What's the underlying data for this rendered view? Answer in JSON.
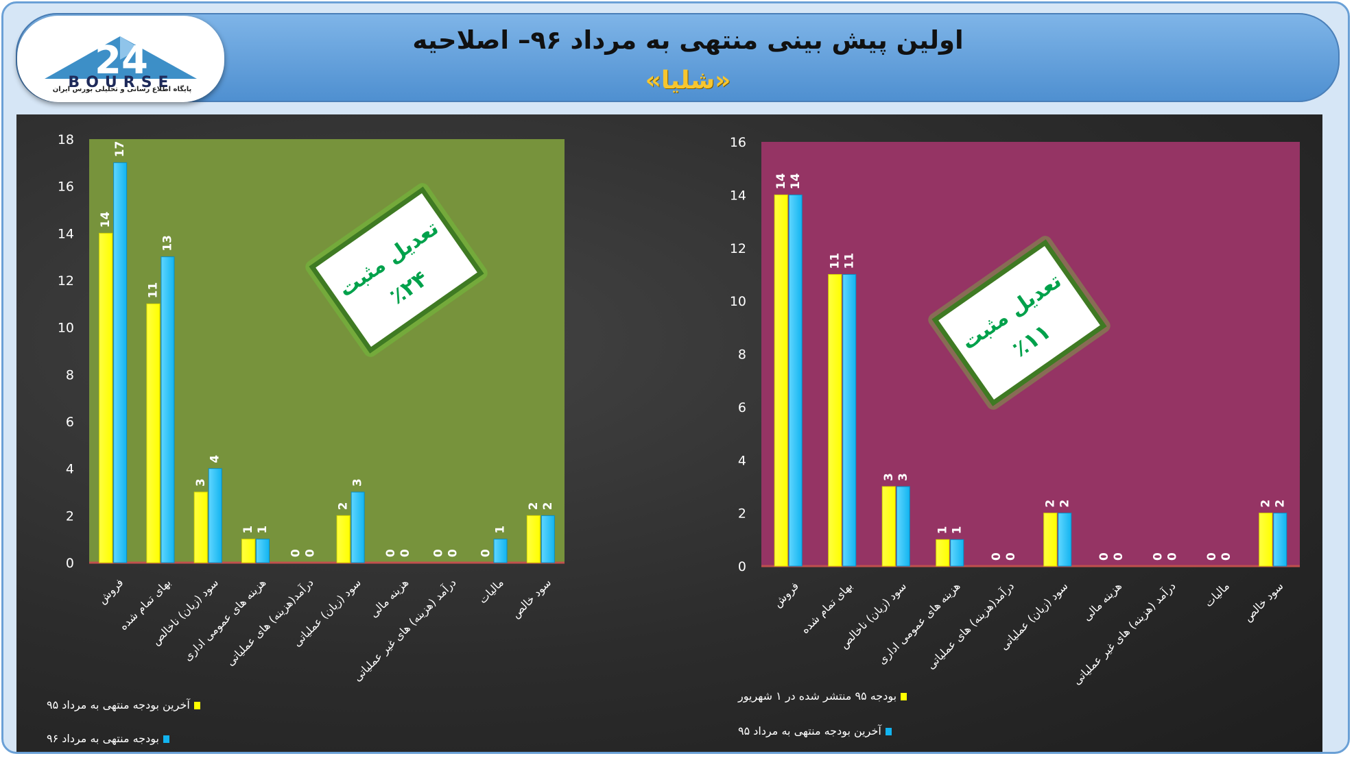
{
  "header": {
    "title": "اولین پیش بینی منتهی به مرداد ۹۶– اصلاحیه",
    "subtitle": "«شلیا»"
  },
  "logo": {
    "brand_text": "BOURSE",
    "brand_number": "24",
    "caption": "پایگاه اطلاع رسانی و تحلیلی بورس ایران"
  },
  "colors": {
    "series_yellow": "#ffff00",
    "series_blue": "#12b4f0",
    "left_plot_bg": "#77933c",
    "right_plot_bg": "#953464",
    "baseline": "#c0504d",
    "stamp_text": "#00a14b"
  },
  "chart_data": [
    {
      "type": "bar",
      "categories": [
        "فروش",
        "بهای تمام شده",
        "سود (زیان) ناخالص",
        "هزینه های عمومی اداری",
        "درآمد(هزینه) های عملیاتی",
        "سود (زیان) عملیاتی",
        "هزینه مالی",
        "درآمد (هزینه) های غیر عملیاتی",
        "مالیات",
        "سود خالص"
      ],
      "series": [
        {
          "name": "آخرین بودجه منتهی به مرداد ۹۵",
          "color": "#ffff00",
          "values": [
            14,
            11,
            3,
            1,
            0,
            2,
            0,
            0,
            0,
            2
          ]
        },
        {
          "name": "بودجه منتهی به مرداد ۹۶",
          "color": "#12b4f0",
          "values": [
            17,
            13,
            4,
            1,
            0,
            3,
            0,
            0,
            1,
            2
          ]
        }
      ],
      "ylim": [
        0,
        18
      ],
      "yticks": [
        0,
        2,
        4,
        6,
        8,
        10,
        12,
        14,
        16,
        18
      ],
      "grid": false,
      "legend_position": "bottom-left",
      "stamp": {
        "line1": "تعدیل مثبت",
        "line2": "٪۲۴"
      }
    },
    {
      "type": "bar",
      "categories": [
        "فروش",
        "بهای تمام شده",
        "سود (زیان) ناخالص",
        "هزینه های عمومی اداری",
        "درآمد(هزینه) های عملیاتی",
        "سود (زیان) عملیاتی",
        "هزینه مالی",
        "درآمد (هزینه) های غیر عملیاتی",
        "مالیات",
        "سود خالص"
      ],
      "series": [
        {
          "name": "بودجه ۹۵ منتشر شده در ۱ شهریور",
          "color": "#ffff00",
          "values": [
            14,
            11,
            3,
            1,
            0,
            2,
            0,
            0,
            0,
            2
          ]
        },
        {
          "name": "آخرین بودجه منتهی به مرداد ۹۵",
          "color": "#12b4f0",
          "values": [
            14,
            11,
            3,
            1,
            0,
            2,
            0,
            0,
            0,
            2
          ]
        }
      ],
      "ylim": [
        0,
        16
      ],
      "yticks": [
        0,
        2,
        4,
        6,
        8,
        10,
        12,
        14,
        16
      ],
      "grid": false,
      "legend_position": "bottom-left",
      "stamp": {
        "line1": "تعدیل مثبت",
        "line2": "٪۱۱"
      }
    }
  ]
}
